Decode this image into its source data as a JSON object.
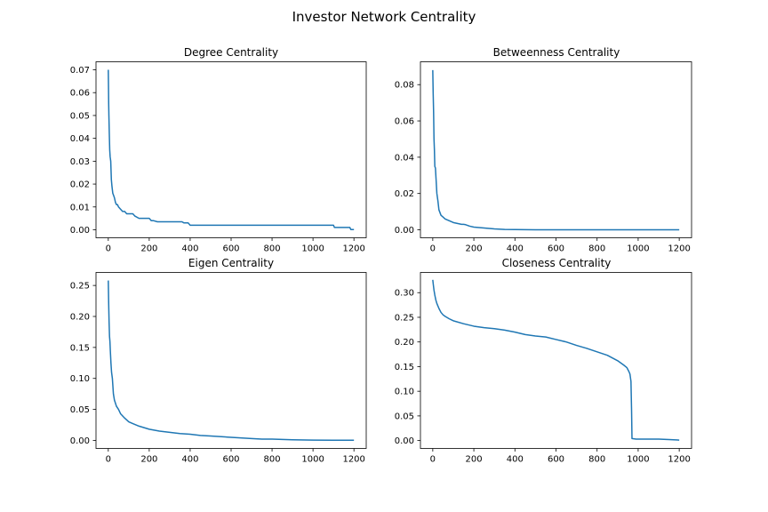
{
  "figure": {
    "title": "Investor Network Centrality",
    "line_color": "#1f77b4"
  },
  "chart_data": [
    {
      "type": "line",
      "title": "Degree Centrality",
      "xlabel": "",
      "ylabel": "",
      "xlim": [
        -60,
        1260
      ],
      "ylim": [
        -0.0035,
        0.0735
      ],
      "xticks": [
        0,
        200,
        400,
        600,
        800,
        1000,
        1200
      ],
      "xtick_labels": [
        "0",
        "200",
        "400",
        "600",
        "800",
        "1000",
        "1200"
      ],
      "yticks": [
        0,
        0.01,
        0.02,
        0.03,
        0.04,
        0.05,
        0.06,
        0.07
      ],
      "ytick_labels": [
        "0.00",
        "0.01",
        "0.02",
        "0.03",
        "0.04",
        "0.05",
        "0.06",
        "0.07"
      ],
      "grid": false,
      "series": [
        {
          "x": [
            0,
            1,
            2,
            3,
            5,
            7,
            9,
            12,
            15,
            18,
            22,
            26,
            30,
            35,
            40,
            45,
            50,
            60,
            70,
            80,
            90,
            100,
            120,
            130,
            150,
            160,
            180,
            200,
            210,
            220,
            240,
            260,
            300,
            340,
            360,
            370,
            390,
            400,
            410,
            600,
            800,
            1000,
            1100,
            1105,
            1150,
            1180,
            1185,
            1200
          ],
          "y": [
            0.07,
            0.063,
            0.055,
            0.05,
            0.042,
            0.035,
            0.032,
            0.03,
            0.022,
            0.019,
            0.016,
            0.015,
            0.014,
            0.012,
            0.011,
            0.011,
            0.01,
            0.009,
            0.008,
            0.008,
            0.007,
            0.007,
            0.007,
            0.006,
            0.005,
            0.005,
            0.005,
            0.005,
            0.004,
            0.004,
            0.0035,
            0.0035,
            0.0035,
            0.0035,
            0.0035,
            0.003,
            0.003,
            0.002,
            0.002,
            0.002,
            0.002,
            0.002,
            0.002,
            0.001,
            0.001,
            0.001,
            0.0001,
            0.0001
          ]
        }
      ]
    },
    {
      "type": "line",
      "title": "Betweenness Centrality",
      "xlabel": "",
      "ylabel": "",
      "xlim": [
        -60,
        1260
      ],
      "ylim": [
        -0.0044,
        0.0926
      ],
      "xticks": [
        0,
        200,
        400,
        600,
        800,
        1000,
        1200
      ],
      "xtick_labels": [
        "0",
        "200",
        "400",
        "600",
        "800",
        "1000",
        "1200"
      ],
      "yticks": [
        0,
        0.02,
        0.04,
        0.06,
        0.08
      ],
      "ytick_labels": [
        "0.00",
        "0.02",
        "0.04",
        "0.06",
        "0.08"
      ],
      "grid": false,
      "series": [
        {
          "x": [
            0,
            2,
            4,
            6,
            8,
            10,
            13,
            16,
            20,
            25,
            30,
            40,
            50,
            60,
            70,
            80,
            90,
            100,
            120,
            140,
            150,
            160,
            180,
            200,
            250,
            300,
            350,
            400,
            500,
            600,
            800,
            1000,
            1200
          ],
          "y": [
            0.088,
            0.075,
            0.065,
            0.05,
            0.044,
            0.035,
            0.034,
            0.028,
            0.02,
            0.016,
            0.011,
            0.008,
            0.007,
            0.006,
            0.0055,
            0.005,
            0.0045,
            0.004,
            0.0035,
            0.003,
            0.003,
            0.0028,
            0.002,
            0.0015,
            0.001,
            0.0005,
            0.0002,
            0.0001,
            0.0,
            0.0,
            0.0,
            0.0,
            0.0
          ]
        }
      ]
    },
    {
      "type": "line",
      "title": "Eigen Centrality",
      "xlabel": "",
      "ylabel": "",
      "xlim": [
        -60,
        1260
      ],
      "ylim": [
        -0.013,
        0.271
      ],
      "xticks": [
        0,
        200,
        400,
        600,
        800,
        1000,
        1200
      ],
      "xtick_labels": [
        "0",
        "200",
        "400",
        "600",
        "800",
        "1000",
        "1200"
      ],
      "yticks": [
        0,
        0.05,
        0.1,
        0.15,
        0.2,
        0.25
      ],
      "ytick_labels": [
        "0.00",
        "0.05",
        "0.10",
        "0.15",
        "0.20",
        "0.25"
      ],
      "grid": false,
      "series": [
        {
          "x": [
            0,
            2,
            4,
            6,
            8,
            10,
            13,
            16,
            20,
            25,
            30,
            40,
            50,
            60,
            80,
            100,
            120,
            150,
            200,
            250,
            300,
            350,
            400,
            450,
            500,
            600,
            700,
            750,
            800,
            900,
            1000,
            1100,
            1200
          ],
          "y": [
            0.258,
            0.22,
            0.19,
            0.168,
            0.16,
            0.145,
            0.125,
            0.11,
            0.1,
            0.075,
            0.065,
            0.055,
            0.05,
            0.043,
            0.036,
            0.03,
            0.027,
            0.023,
            0.018,
            0.015,
            0.013,
            0.011,
            0.01,
            0.008,
            0.007,
            0.005,
            0.003,
            0.002,
            0.002,
            0.001,
            0.0005,
            0.0003,
            0.0002
          ]
        }
      ]
    },
    {
      "type": "line",
      "title": "Closeness Centrality",
      "xlabel": "",
      "ylabel": "",
      "xlim": [
        -60,
        1260
      ],
      "ylim": [
        -0.016,
        0.341
      ],
      "xticks": [
        0,
        200,
        400,
        600,
        800,
        1000,
        1200
      ],
      "xtick_labels": [
        "0",
        "200",
        "400",
        "600",
        "800",
        "1000",
        "1200"
      ],
      "yticks": [
        0,
        0.05,
        0.1,
        0.15,
        0.2,
        0.25,
        0.3
      ],
      "ytick_labels": [
        "0.00",
        "0.05",
        "0.10",
        "0.15",
        "0.20",
        "0.25",
        "0.30"
      ],
      "grid": false,
      "series": [
        {
          "x": [
            0,
            3,
            6,
            10,
            15,
            20,
            25,
            30,
            40,
            50,
            60,
            80,
            100,
            150,
            200,
            250,
            300,
            350,
            400,
            450,
            500,
            550,
            600,
            650,
            700,
            750,
            800,
            850,
            900,
            930,
            945,
            955,
            960,
            965,
            968,
            970,
            990,
            1050,
            1100,
            1150,
            1200
          ],
          "y": [
            0.326,
            0.315,
            0.305,
            0.295,
            0.285,
            0.278,
            0.273,
            0.268,
            0.26,
            0.255,
            0.252,
            0.247,
            0.243,
            0.237,
            0.232,
            0.229,
            0.227,
            0.224,
            0.22,
            0.215,
            0.212,
            0.21,
            0.205,
            0.2,
            0.193,
            0.187,
            0.18,
            0.173,
            0.162,
            0.153,
            0.148,
            0.14,
            0.135,
            0.12,
            0.06,
            0.004,
            0.003,
            0.003,
            0.003,
            0.002,
            0.001
          ]
        }
      ]
    }
  ]
}
